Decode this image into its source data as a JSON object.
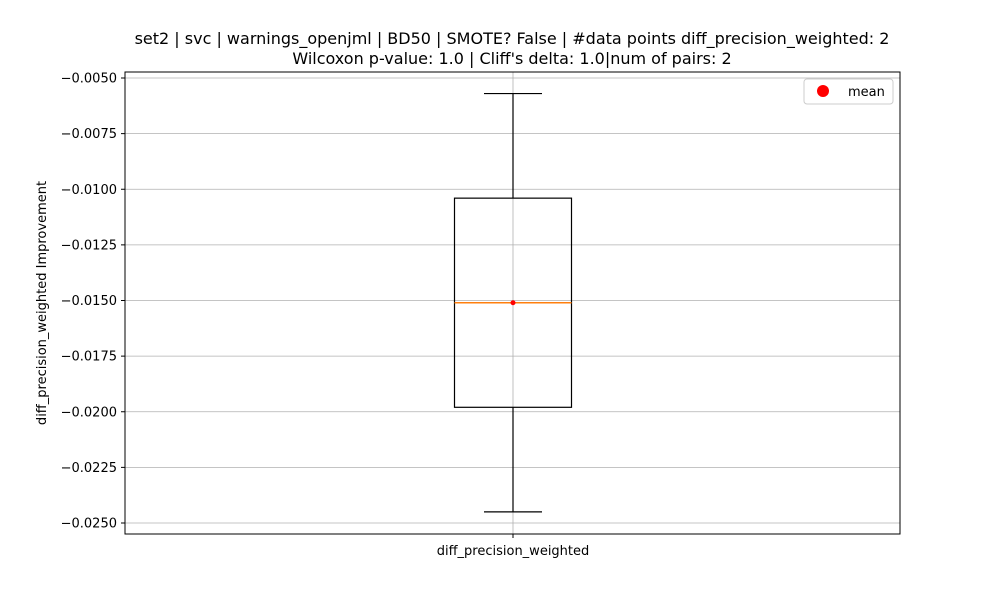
{
  "chart_data": {
    "type": "box",
    "title_line1": "set2 | svc | warnings_openjml | BD50 | SMOTE? False | #data points diff_precision_weighted: 2",
    "title_line2": "Wilcoxon p-value: 1.0 | Cliff's delta: 1.0|num of pairs: 2",
    "xlabel": "",
    "ylabel": "diff_precision_weighted Improvement",
    "categories": [
      "diff_precision_weighted"
    ],
    "ylim": [
      -0.0255,
      -0.0047
    ],
    "yticks": [
      -0.005,
      -0.0075,
      -0.01,
      -0.0125,
      -0.015,
      -0.0175,
      -0.02,
      -0.0225,
      -0.025
    ],
    "ytick_labels": [
      "−0.0050",
      "−0.0075",
      "−0.0100",
      "−0.0125",
      "−0.0150",
      "−0.0175",
      "−0.0200",
      "−0.0225",
      "−0.0250"
    ],
    "grid": true,
    "box": {
      "whisker_high": -0.0057,
      "q3": -0.0104,
      "median": -0.0151,
      "q1": -0.0198,
      "whisker_low": -0.0245,
      "mean": -0.0151
    },
    "legend": {
      "position": "top-right",
      "entries": [
        {
          "label": "mean",
          "color": "#ff0000",
          "marker": "circle"
        }
      ]
    },
    "colors": {
      "box": "#000000",
      "median": "#ff7f0e",
      "mean": "#ff0000",
      "grid": "#b0b0b0"
    }
  }
}
